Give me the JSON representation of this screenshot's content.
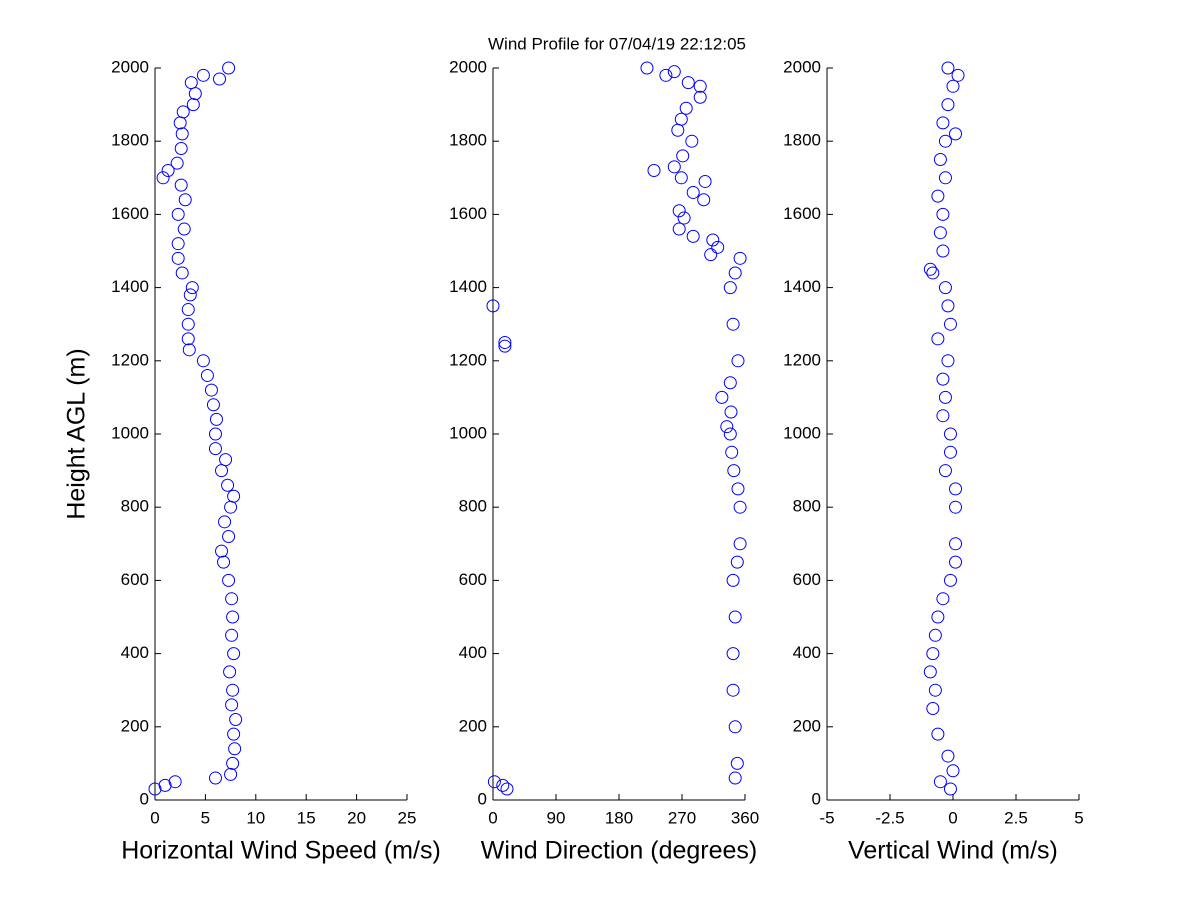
{
  "title": "Wind Profile for  07/04/19 22:12:05",
  "chart_data": [
    {
      "type": "scatter",
      "xlabel": "Horizontal Wind Speed (m/s)",
      "ylabel": "Height AGL (m)",
      "color": "#0000ff",
      "x": [
        0,
        1,
        2,
        6,
        7.5,
        7.7,
        7.9,
        7.8,
        8,
        7.6,
        7.7,
        7.4,
        7.8,
        7.6,
        7.7,
        7.6,
        7.3,
        6.8,
        6.6,
        7.3,
        6.9,
        7.5,
        7.8,
        7.2,
        6.6,
        7,
        6,
        6,
        6.1,
        5.8,
        5.6,
        5.2,
        4.8,
        3.4,
        3.3,
        3.3,
        3.3,
        3.5,
        3.7,
        2.7,
        2.3,
        2.3,
        2.9,
        2.3,
        3,
        2.6,
        0.8,
        1.3,
        2.2,
        2.6,
        2.7,
        2.5,
        2.8,
        3.8,
        4,
        3.6,
        4.8,
        6.4,
        7.3
      ],
      "y": [
        30,
        40,
        50,
        60,
        70,
        100,
        140,
        180,
        220,
        260,
        300,
        350,
        400,
        450,
        500,
        550,
        600,
        650,
        680,
        720,
        760,
        800,
        830,
        860,
        900,
        930,
        960,
        1000,
        1040,
        1080,
        1120,
        1160,
        1200,
        1230,
        1260,
        1300,
        1340,
        1380,
        1400,
        1440,
        1480,
        1520,
        1560,
        1600,
        1640,
        1680,
        1700,
        1720,
        1740,
        1780,
        1820,
        1850,
        1880,
        1900,
        1930,
        1960,
        1980,
        1970,
        2000
      ],
      "xlim": [
        0,
        25
      ],
      "xticks": [
        0,
        5,
        10,
        15,
        20,
        25
      ],
      "ylim": [
        0,
        2000
      ],
      "yticks": [
        0,
        200,
        400,
        600,
        800,
        1000,
        1200,
        1400,
        1600,
        1800,
        2000
      ]
    },
    {
      "type": "scatter",
      "xlabel": "Wind Direction (degrees)",
      "color": "#0000ff",
      "x": [
        20,
        14,
        2,
        346,
        349,
        346,
        343,
        343,
        346,
        343,
        349,
        353,
        353,
        350,
        344,
        341,
        339,
        334,
        340,
        327,
        339,
        350,
        17,
        17,
        343,
        0,
        339,
        346,
        353,
        311,
        321,
        314,
        286,
        266,
        273,
        266,
        301,
        286,
        303,
        269,
        230,
        259,
        271,
        284,
        264,
        269,
        276,
        296,
        296,
        279,
        247,
        259,
        220
      ],
      "y": [
        30,
        40,
        50,
        60,
        100,
        200,
        300,
        400,
        500,
        600,
        650,
        700,
        800,
        850,
        900,
        950,
        1000,
        1020,
        1060,
        1100,
        1140,
        1200,
        1240,
        1250,
        1300,
        1350,
        1400,
        1440,
        1480,
        1490,
        1510,
        1530,
        1540,
        1560,
        1590,
        1610,
        1640,
        1660,
        1690,
        1700,
        1720,
        1730,
        1760,
        1800,
        1830,
        1860,
        1890,
        1920,
        1950,
        1960,
        1980,
        1990,
        2000
      ],
      "xlim": [
        0,
        360
      ],
      "xticks": [
        0,
        90,
        180,
        270,
        360
      ],
      "ylim": [
        0,
        2000
      ],
      "yticks": [
        0,
        200,
        400,
        600,
        800,
        1000,
        1200,
        1400,
        1600,
        1800,
        2000
      ]
    },
    {
      "type": "scatter",
      "xlabel": "Vertical Wind (m/s)",
      "color": "#0000ff",
      "x": [
        -0.1,
        -0.5,
        0,
        -0.2,
        -0.6,
        -0.8,
        -0.7,
        -0.9,
        -0.8,
        -0.7,
        -0.6,
        -0.4,
        -0.1,
        0.1,
        0.1,
        0.1,
        0.1,
        -0.3,
        -0.1,
        -0.1,
        -0.4,
        -0.3,
        -0.4,
        -0.2,
        -0.6,
        -0.1,
        -0.2,
        -0.3,
        -0.8,
        -0.9,
        -0.4,
        -0.5,
        -0.4,
        -0.6,
        -0.3,
        -0.5,
        -0.3,
        0.1,
        -0.4,
        -0.2,
        0,
        0.2,
        -0.2
      ],
      "y": [
        30,
        50,
        80,
        120,
        180,
        250,
        300,
        350,
        400,
        450,
        500,
        550,
        600,
        650,
        700,
        800,
        850,
        900,
        950,
        1000,
        1050,
        1100,
        1150,
        1200,
        1260,
        1300,
        1350,
        1400,
        1440,
        1450,
        1500,
        1550,
        1600,
        1650,
        1700,
        1750,
        1800,
        1820,
        1850,
        1900,
        1950,
        1980,
        2000
      ],
      "xlim": [
        -5,
        5
      ],
      "xticks": [
        -5,
        {
          "value": -2.5,
          "label": "-2.5"
        },
        0,
        {
          "value": 2.5,
          "label": "2.5"
        },
        5
      ],
      "ylim": [
        0,
        2000
      ],
      "yticks": [
        0,
        200,
        400,
        600,
        800,
        1000,
        1200,
        1400,
        1600,
        1800,
        2000
      ]
    }
  ]
}
